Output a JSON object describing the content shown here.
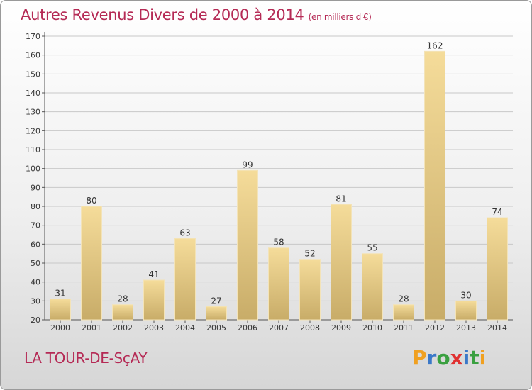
{
  "title": "Autres Revenus Divers de 2000 à 2014",
  "unit": "(en milliers d'€)",
  "place": "LA TOUR-DE-SçAY",
  "logo": {
    "letters": [
      "P",
      "r",
      "o",
      "x",
      "i",
      "t",
      "i"
    ],
    "colors": [
      "#f0a020",
      "#3a78c8",
      "#3aa040",
      "#e03030",
      "#3a78c8",
      "#3aa040",
      "#f0a020"
    ]
  },
  "chart_data": {
    "type": "bar",
    "categories": [
      "2000",
      "2001",
      "2002",
      "2003",
      "2004",
      "2005",
      "2006",
      "2007",
      "2008",
      "2009",
      "2010",
      "2011",
      "2012",
      "2013",
      "2014"
    ],
    "values": [
      31,
      80,
      28,
      41,
      63,
      27,
      99,
      58,
      52,
      81,
      55,
      28,
      162,
      30,
      74
    ],
    "ylim": [
      20,
      170
    ],
    "yticks": [
      20,
      30,
      40,
      50,
      60,
      70,
      80,
      90,
      100,
      110,
      120,
      130,
      140,
      150,
      160,
      170
    ],
    "grid": true,
    "bar_color_light": "#f5dc9a",
    "bar_color_dark": "#c8ac68",
    "grid_color": "#c8c8c8"
  }
}
